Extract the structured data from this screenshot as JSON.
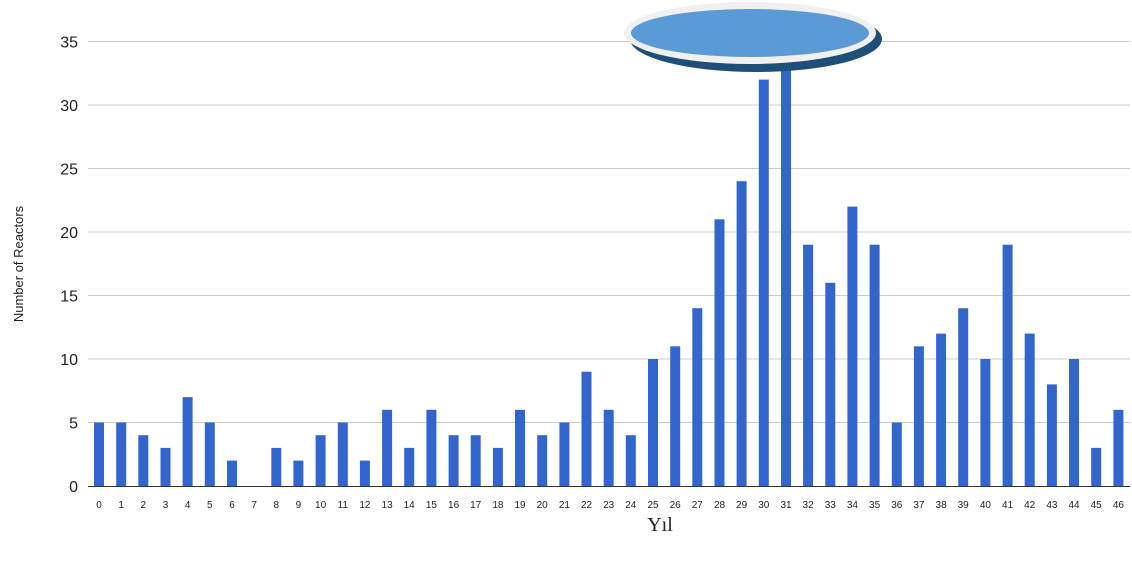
{
  "chart_data": {
    "type": "bar",
    "title": "",
    "xlabel": "Yıl",
    "ylabel": "Number of Reactors",
    "ylim": [
      0,
      35
    ],
    "yticks": [
      0,
      5,
      10,
      15,
      20,
      25,
      30,
      35
    ],
    "grid": true,
    "legend": "none",
    "categories": [
      "0",
      "1",
      "2",
      "3",
      "4",
      "5",
      "6",
      "7",
      "8",
      "9",
      "10",
      "11",
      "12",
      "13",
      "14",
      "15",
      "16",
      "17",
      "18",
      "19",
      "20",
      "21",
      "22",
      "23",
      "24",
      "25",
      "26",
      "27",
      "28",
      "29",
      "30",
      "31",
      "32",
      "33",
      "34",
      "35",
      "36",
      "37",
      "38",
      "39",
      "40",
      "41",
      "42",
      "43",
      "44",
      "45",
      "46"
    ],
    "values": [
      5,
      5,
      4,
      3,
      7,
      5,
      2,
      0,
      3,
      2,
      4,
      5,
      2,
      6,
      3,
      6,
      4,
      4,
      3,
      6,
      4,
      5,
      9,
      6,
      4,
      10,
      11,
      14,
      21,
      24,
      32,
      33,
      19,
      16,
      22,
      19,
      5,
      11,
      12,
      14,
      10,
      19,
      12,
      8,
      10,
      3,
      6
    ],
    "bar_color": "#3366cc",
    "grid_color": "#cccccc",
    "ellipse_fill": "#5b9bd5",
    "ellipse_border": "#1f4e79"
  }
}
